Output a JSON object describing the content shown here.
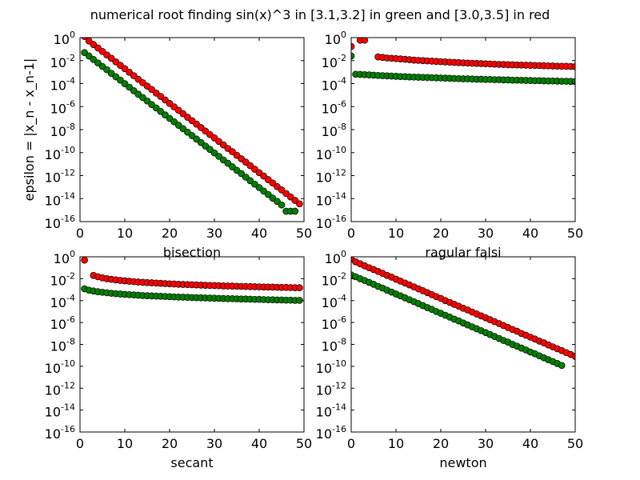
{
  "figure": {
    "title": "numerical root finding sin(x)^3 in [3.1,3.2] in green and [3.0,3.5] in red",
    "ylabel": "epsilon = |x_n - x_n-1|"
  },
  "colors": {
    "green_series": "#008000",
    "red_series": "#ff0000",
    "axis": "#000000",
    "background": "#ffffff"
  },
  "chart_data": [
    {
      "type": "scatter",
      "xlabel": "bisection",
      "ylabel": "epsilon = |x_n - x_n-1|",
      "xlim": [
        0,
        50
      ],
      "ylim": [
        1e-16,
        1
      ],
      "yscale": "log",
      "xticks": [
        0,
        10,
        20,
        30,
        40,
        50
      ],
      "yticks": [
        0,
        -2,
        -4,
        -6,
        -8,
        -10,
        -12,
        -14,
        -16
      ],
      "series": [
        {
          "color": "green",
          "x": [
            1,
            2,
            3,
            4,
            5,
            6,
            7,
            8,
            9,
            10,
            11,
            12,
            13,
            14,
            15,
            16,
            17,
            18,
            19,
            20,
            21,
            22,
            23,
            24,
            25,
            26,
            27,
            28,
            29,
            30,
            31,
            32,
            33,
            34,
            35,
            36,
            37,
            38,
            39,
            40,
            41,
            42,
            43,
            44,
            45,
            46,
            47,
            48
          ],
          "y": [
            0.05,
            0.025,
            0.0125,
            0.00625,
            0.0031,
            0.0016,
            0.00078,
            0.00039,
            0.0002,
            9.8e-05,
            4.9e-05,
            2.4e-05,
            1.2e-05,
            6.1e-06,
            3.1e-06,
            1.5e-06,
            7.6e-07,
            3.8e-07,
            1.9e-07,
            9.5e-08,
            4.8e-08,
            2.4e-08,
            1.2e-08,
            6e-09,
            3e-09,
            1.5e-09,
            7.5e-10,
            3.7e-10,
            1.9e-10,
            9.3e-11,
            4.7e-11,
            2.3e-11,
            1.2e-11,
            5.8e-12,
            2.9e-12,
            1.5e-12,
            7.3e-13,
            3.6e-13,
            1.8e-13,
            9.1e-14,
            4.5e-14,
            2.3e-14,
            1.1e-14,
            5.7e-15,
            2.8e-15,
            8e-16,
            8e-16,
            8e-16
          ]
        },
        {
          "color": "red",
          "x": [
            1,
            2,
            3,
            4,
            5,
            6,
            7,
            8,
            9,
            10,
            11,
            12,
            13,
            14,
            15,
            16,
            17,
            18,
            19,
            20,
            21,
            22,
            23,
            24,
            25,
            26,
            27,
            28,
            29,
            30,
            31,
            32,
            33,
            34,
            35,
            36,
            37,
            38,
            39,
            40,
            41,
            42,
            43,
            44,
            45,
            46,
            47,
            48,
            49
          ],
          "y": [
            1.25,
            0.5,
            0.25,
            0.125,
            0.0625,
            0.031,
            0.016,
            0.0078,
            0.0039,
            0.002,
            0.00098,
            0.00049,
            0.00024,
            0.00012,
            6.1e-05,
            3.1e-05,
            1.5e-05,
            7.6e-06,
            3.8e-06,
            1.9e-06,
            9.5e-07,
            4.8e-07,
            2.4e-07,
            1.2e-07,
            6e-08,
            3e-08,
            1.5e-08,
            7.5e-09,
            3.7e-09,
            1.9e-09,
            9.3e-10,
            4.7e-10,
            2.3e-10,
            1.2e-10,
            5.8e-11,
            2.9e-11,
            1.5e-11,
            7.3e-12,
            3.6e-12,
            1.8e-12,
            9.1e-13,
            4.5e-13,
            2.3e-13,
            1.1e-13,
            5.7e-14,
            2.8e-14,
            1.4e-14,
            7e-15,
            3.5e-15
          ]
        }
      ]
    },
    {
      "type": "scatter",
      "xlabel": "ragular falsi",
      "xlim": [
        0,
        50
      ],
      "ylim": [
        1e-16,
        1
      ],
      "yscale": "log",
      "xticks": [
        0,
        10,
        20,
        30,
        40,
        50
      ],
      "yticks": [
        0,
        -2,
        -4,
        -6,
        -8,
        -10,
        -12,
        -14,
        -16
      ],
      "series": [
        {
          "color": "green",
          "x": [
            0,
            1,
            2,
            3,
            4,
            5,
            6,
            7,
            8,
            9,
            10,
            11,
            12,
            13,
            14,
            15,
            16,
            17,
            18,
            19,
            20,
            21,
            22,
            23,
            24,
            25,
            26,
            27,
            28,
            29,
            30,
            31,
            32,
            33,
            34,
            35,
            36,
            37,
            38,
            39,
            40,
            41,
            42,
            43,
            44,
            45,
            46,
            47,
            48,
            49,
            50
          ],
          "y": [
            0.025,
            0.00065,
            0.00063,
            0.0006,
            0.00057,
            0.00054,
            0.00051,
            0.00049,
            0.00047,
            0.00045,
            0.00043,
            0.00041,
            0.0004,
            0.00038,
            0.00037,
            0.00036,
            0.00035,
            0.00034,
            0.00033,
            0.00032,
            0.00031,
            0.0003,
            0.00029,
            0.00028,
            0.00027,
            0.00026,
            0.00026,
            0.00025,
            0.00024,
            0.00024,
            0.00023,
            0.00023,
            0.00022,
            0.00022,
            0.00021,
            0.00021,
            0.0002,
            0.0002,
            0.000195,
            0.00019,
            0.000185,
            0.00018,
            0.00018,
            0.000175,
            0.00017,
            0.00017,
            0.000165,
            0.00016,
            0.00016,
            0.000155,
            0.00015
          ]
        },
        {
          "color": "red",
          "x": [
            0,
            2,
            3,
            6,
            7,
            8,
            9,
            10,
            11,
            12,
            13,
            14,
            15,
            16,
            17,
            18,
            19,
            20,
            21,
            22,
            23,
            24,
            25,
            26,
            27,
            28,
            29,
            30,
            31,
            32,
            33,
            34,
            35,
            36,
            37,
            38,
            39,
            40,
            41,
            42,
            43,
            44,
            45,
            46,
            47,
            48,
            49,
            50
          ],
          "y": [
            0.17,
            0.6,
            0.6,
            0.021,
            0.019,
            0.017,
            0.016,
            0.015,
            0.014,
            0.013,
            0.012,
            0.011,
            0.0105,
            0.01,
            0.0095,
            0.009,
            0.0085,
            0.0081,
            0.0077,
            0.0073,
            0.007,
            0.0067,
            0.0064,
            0.0061,
            0.0059,
            0.0057,
            0.0055,
            0.0053,
            0.0051,
            0.0049,
            0.0047,
            0.0046,
            0.0044,
            0.0043,
            0.0042,
            0.0041,
            0.004,
            0.0039,
            0.0038,
            0.0037,
            0.0036,
            0.0035,
            0.0034,
            0.0033,
            0.0032,
            0.0032,
            0.0031,
            0.003
          ]
        }
      ]
    },
    {
      "type": "scatter",
      "xlabel": "secant",
      "xlim": [
        0,
        50
      ],
      "ylim": [
        1e-16,
        1
      ],
      "yscale": "log",
      "xticks": [
        0,
        10,
        20,
        30,
        40,
        50
      ],
      "yticks": [
        0,
        -2,
        -4,
        -6,
        -8,
        -10,
        -12,
        -14,
        -16
      ],
      "series": [
        {
          "color": "green",
          "x": [
            1,
            2,
            3,
            4,
            5,
            6,
            7,
            8,
            9,
            10,
            11,
            12,
            13,
            14,
            15,
            16,
            17,
            18,
            19,
            20,
            21,
            22,
            23,
            24,
            25,
            26,
            27,
            28,
            29,
            30,
            31,
            32,
            33,
            34,
            35,
            36,
            37,
            38,
            39,
            40,
            41,
            42,
            43,
            44,
            45,
            46,
            47,
            48,
            49
          ],
          "y": [
            0.0012,
            0.0009,
            0.00075,
            0.00065,
            0.00058,
            0.00052,
            0.00047,
            0.00043,
            0.0004,
            0.00037,
            0.00035,
            0.00033,
            0.00031,
            0.00029,
            0.00028,
            0.00027,
            0.00026,
            0.00025,
            0.00024,
            0.00023,
            0.00022,
            0.00021,
            0.000205,
            0.0002,
            0.00019,
            0.000185,
            0.00018,
            0.000175,
            0.00017,
            0.000165,
            0.00016,
            0.000155,
            0.00015,
            0.00015,
            0.000145,
            0.00014,
            0.00014,
            0.000135,
            0.00013,
            0.00013,
            0.000125,
            0.00012,
            0.00012,
            0.000115,
            0.000115,
            0.00011,
            0.00011,
            0.000105,
            0.000105
          ]
        },
        {
          "color": "red",
          "x": [
            1,
            3,
            4,
            5,
            6,
            7,
            8,
            9,
            10,
            11,
            12,
            13,
            14,
            15,
            16,
            17,
            18,
            19,
            20,
            21,
            22,
            23,
            24,
            25,
            26,
            27,
            28,
            29,
            30,
            31,
            32,
            33,
            34,
            35,
            36,
            37,
            38,
            39,
            40,
            41,
            42,
            43,
            44,
            45,
            46,
            47,
            48,
            49
          ],
          "y": [
            0.5,
            0.02,
            0.015,
            0.012,
            0.01,
            0.0088,
            0.0078,
            0.007,
            0.0064,
            0.0059,
            0.0054,
            0.005,
            0.0047,
            0.0044,
            0.0042,
            0.004,
            0.0038,
            0.0036,
            0.0034,
            0.0033,
            0.0031,
            0.003,
            0.0029,
            0.0028,
            0.0027,
            0.0026,
            0.0025,
            0.0024,
            0.00235,
            0.0023,
            0.0022,
            0.00215,
            0.0021,
            0.00205,
            0.002,
            0.00195,
            0.0019,
            0.00185,
            0.0018,
            0.00175,
            0.0017,
            0.0017,
            0.00165,
            0.0016,
            0.0016,
            0.00155,
            0.0015,
            0.0015
          ]
        }
      ]
    },
    {
      "type": "scatter",
      "xlabel": "newton",
      "xlim": [
        0,
        50
      ],
      "ylim": [
        1e-16,
        1
      ],
      "yscale": "log",
      "xticks": [
        0,
        10,
        20,
        30,
        40,
        50
      ],
      "yticks": [
        0,
        -2,
        -4,
        -6,
        -8,
        -10,
        -12,
        -14,
        -16
      ],
      "series": [
        {
          "color": "green",
          "x": [
            0,
            1,
            2,
            3,
            4,
            5,
            6,
            7,
            8,
            9,
            10,
            11,
            12,
            13,
            14,
            15,
            16,
            17,
            18,
            19,
            20,
            21,
            22,
            23,
            24,
            25,
            26,
            27,
            28,
            29,
            30,
            31,
            32,
            33,
            34,
            35,
            36,
            37,
            38,
            39,
            40,
            41,
            42,
            43,
            44,
            45,
            46,
            47
          ],
          "y": [
            0.022,
            0.015,
            0.01,
            0.0069,
            0.0046,
            0.0031,
            0.002,
            0.0014,
            0.0009,
            0.0006,
            0.0004,
            0.00027,
            0.00018,
            0.00012,
            8e-05,
            5.3e-05,
            3.5e-05,
            2.3e-05,
            1.6e-05,
            1e-05,
            6.9e-06,
            4.6e-06,
            3.1e-06,
            2e-06,
            1.4e-06,
            9e-07,
            6e-07,
            4e-07,
            2.7e-07,
            1.8e-07,
            1.2e-07,
            8e-08,
            5.3e-08,
            3.5e-08,
            2.3e-08,
            1.6e-08,
            1e-08,
            6.9e-09,
            4.6e-09,
            3.1e-09,
            2e-09,
            1.4e-09,
            9e-10,
            6e-10,
            4e-10,
            2.7e-10,
            1.8e-10,
            1.2e-10
          ]
        },
        {
          "color": "red",
          "x": [
            0,
            1,
            2,
            3,
            4,
            5,
            6,
            7,
            8,
            9,
            10,
            11,
            12,
            13,
            14,
            15,
            16,
            17,
            18,
            19,
            20,
            21,
            22,
            23,
            24,
            25,
            26,
            27,
            28,
            29,
            30,
            31,
            32,
            33,
            34,
            35,
            36,
            37,
            38,
            39,
            40,
            41,
            42,
            43,
            44,
            45,
            46,
            47,
            48,
            49,
            50
          ],
          "y": [
            0.6,
            0.35,
            0.23,
            0.15,
            0.1,
            0.069,
            0.046,
            0.031,
            0.02,
            0.014,
            0.009,
            0.006,
            0.004,
            0.0027,
            0.0018,
            0.0012,
            0.0008,
            0.00053,
            0.00035,
            0.00023,
            0.00016,
            0.0001,
            6.9e-05,
            4.6e-05,
            3.1e-05,
            2e-05,
            1.4e-05,
            9e-06,
            6e-06,
            4e-06,
            2.7e-06,
            1.8e-06,
            1.2e-06,
            8e-07,
            5.3e-07,
            3.5e-07,
            2.3e-07,
            1.6e-07,
            1e-07,
            6.9e-08,
            4.6e-08,
            3.1e-08,
            2e-08,
            1.4e-08,
            9e-09,
            6e-09,
            4e-09,
            2.7e-09,
            1.8e-09,
            1.2e-09,
            8e-10
          ]
        }
      ]
    }
  ]
}
